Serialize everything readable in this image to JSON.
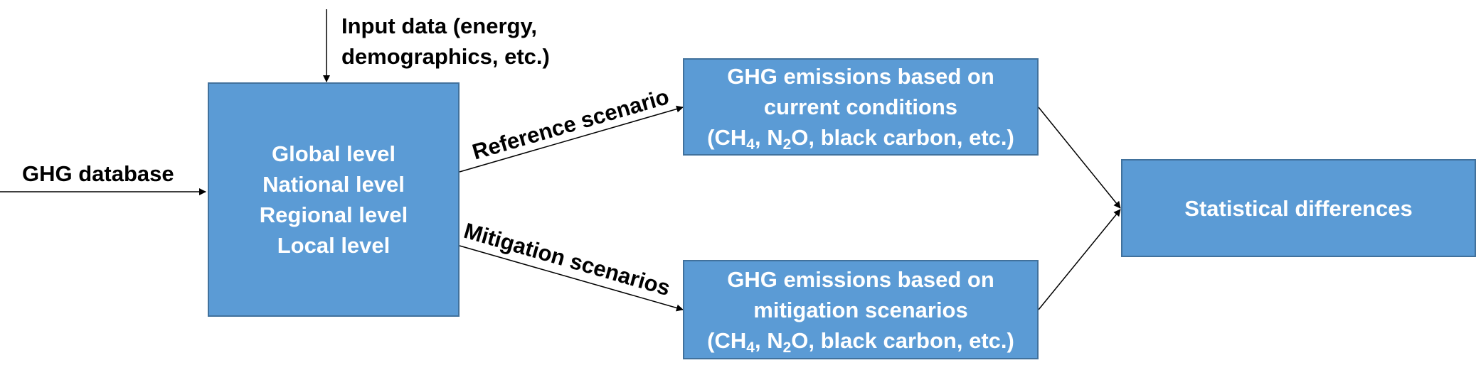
{
  "inputs": {
    "ghg_database": "GHG database",
    "input_data_line1": "Input data (energy,",
    "input_data_line2": "demographics, etc.)"
  },
  "levels_box": {
    "lines": [
      "Global level",
      "National level",
      "Regional level",
      "Local level"
    ]
  },
  "edges": {
    "reference": "Reference scenario",
    "mitigation": "Mitigation scenarios"
  },
  "reference_box": {
    "line1": "GHG emissions based on",
    "line2": "current conditions",
    "gas_open": "(CH",
    "ch4_sub": "4",
    "gas_mid": ", N",
    "n2o_sub": "2",
    "gas_rest": "O, black carbon, etc.)"
  },
  "mitigation_box": {
    "line1": "GHG emissions based on",
    "line2": "mitigation scenarios",
    "gas_open": "(CH",
    "ch4_sub": "4",
    "gas_mid": ", N",
    "n2o_sub": "2",
    "gas_rest": "O, black carbon, etc.)"
  },
  "result_box": {
    "label": "Statistical differences"
  },
  "colors": {
    "box_fill": "#5b9bd5",
    "box_border": "#41719c",
    "box_text": "#ffffff",
    "arrow": "#000000"
  }
}
